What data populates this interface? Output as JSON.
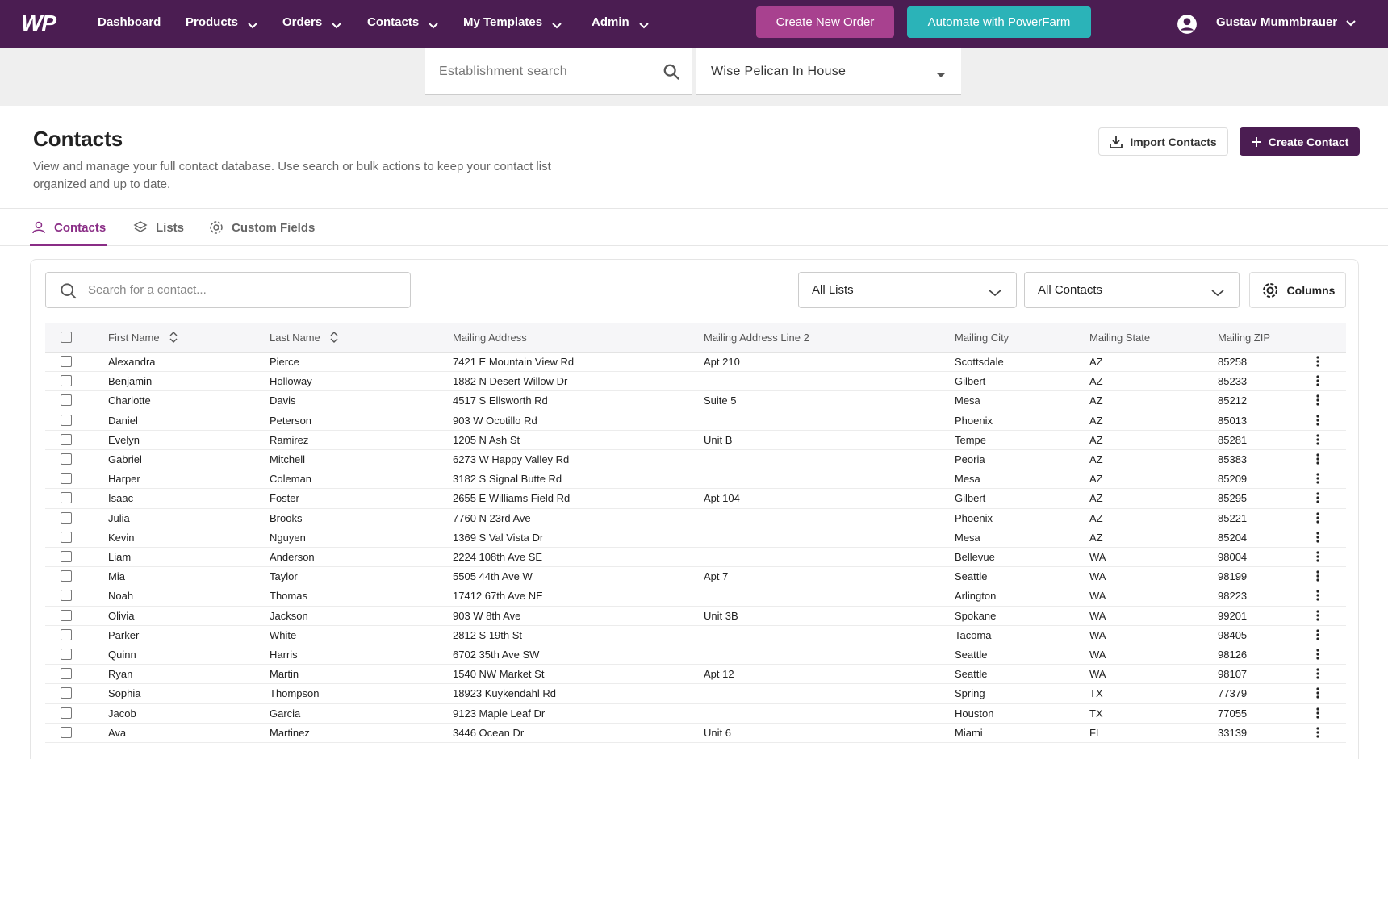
{
  "nav": {
    "logo": "WP",
    "menu": [
      "Dashboard",
      "Products",
      "Orders",
      "Contacts",
      "My Templates",
      "Admin"
    ],
    "buttons": [
      "Create New Order",
      "Automate with PowerFarm"
    ],
    "user": "Gustav Mummbrauer"
  },
  "establishment": {
    "search_placeholder": "Establishment search",
    "selected": "Wise Pelican In House"
  },
  "header": {
    "title": "Contacts",
    "description": "View and manage your full contact database. Use search or bulk actions to keep your contact list organized and up to date.",
    "buttons": [
      "Import Contacts",
      "Create Contact"
    ]
  },
  "tabs": [
    "Contacts",
    "Lists",
    "Custom Fields"
  ],
  "toolbar": {
    "search_placeholder": "Search for a contact...",
    "filters": [
      "All Lists",
      "All Contacts"
    ],
    "columns_button": "Columns"
  },
  "table": {
    "columns": [
      "First Name",
      "Last Name",
      "Mailing Address",
      "Mailing Address Line 2",
      "Mailing City",
      "Mailing State",
      "Mailing ZIP"
    ],
    "rows": [
      [
        "Alexandra",
        "Pierce",
        "7421 E Mountain View Rd",
        "Apt 210",
        "Scottsdale",
        "AZ",
        "85258"
      ],
      [
        "Benjamin",
        "Holloway",
        "1882 N Desert Willow Dr",
        null,
        "Gilbert",
        "AZ",
        "85233"
      ],
      [
        "Charlotte",
        "Davis",
        "4517 S Ellsworth Rd",
        "Suite 5",
        "Mesa",
        "AZ",
        "85212"
      ],
      [
        "Daniel",
        "Peterson",
        "903 W Ocotillo Rd",
        null,
        "Phoenix",
        "AZ",
        "85013"
      ],
      [
        "Evelyn",
        "Ramirez",
        "1205 N Ash St",
        "Unit B",
        "Tempe",
        "AZ",
        "85281"
      ],
      [
        "Gabriel",
        "Mitchell",
        "6273 W Happy Valley Rd",
        null,
        "Peoria",
        "AZ",
        "85383"
      ],
      [
        "Harper",
        "Coleman",
        "3182 S Signal Butte Rd",
        null,
        "Mesa",
        "AZ",
        "85209"
      ],
      [
        "Isaac",
        "Foster",
        "2655 E Williams Field Rd",
        "Apt 104",
        "Gilbert",
        "AZ",
        "85295"
      ],
      [
        "Julia",
        "Brooks",
        "7760 N 23rd Ave",
        null,
        "Phoenix",
        "AZ",
        "85221"
      ],
      [
        "Kevin",
        "Nguyen",
        "1369 S Val Vista Dr",
        null,
        "Mesa",
        "AZ",
        "85204"
      ],
      [
        "Liam",
        "Anderson",
        "2224 108th Ave SE",
        null,
        "Bellevue",
        "WA",
        "98004"
      ],
      [
        "Mia",
        "Taylor",
        "5505 44th Ave W",
        "Apt 7",
        "Seattle",
        "WA",
        "98199"
      ],
      [
        "Noah",
        "Thomas",
        "17412 67th Ave NE",
        null,
        "Arlington",
        "WA",
        "98223"
      ],
      [
        "Olivia",
        "Jackson",
        "903 W 8th Ave",
        "Unit 3B",
        "Spokane",
        "WA",
        "99201"
      ],
      [
        "Parker",
        "White",
        "2812 S 19th St",
        null,
        "Tacoma",
        "WA",
        "98405"
      ],
      [
        "Quinn",
        "Harris",
        "6702 35th Ave SW",
        null,
        "Seattle",
        "WA",
        "98126"
      ],
      [
        "Ryan",
        "Martin",
        "1540 NW Market St",
        "Apt 12",
        "Seattle",
        "WA",
        "98107"
      ],
      [
        "Sophia",
        "Thompson",
        "18923 Kuykendahl Rd",
        null,
        "Spring",
        "TX",
        "77379"
      ],
      [
        "Jacob",
        "Garcia",
        "9123 Maple Leaf Dr",
        null,
        "Houston",
        "TX",
        "77055"
      ],
      [
        "Ava",
        "Martinez",
        "3446 Ocean Dr",
        "Unit 6",
        "Miami",
        "FL",
        "33139"
      ]
    ]
  }
}
